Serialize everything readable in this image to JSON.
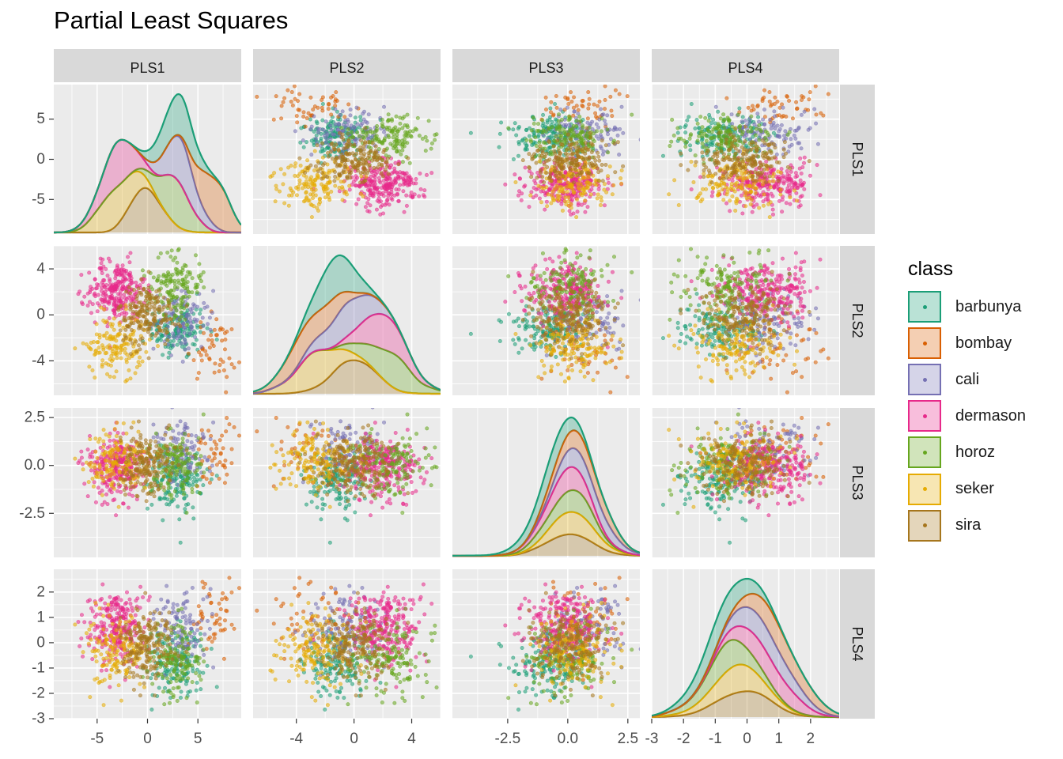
{
  "chart_data": {
    "type": "scatter",
    "title": "Partial Least Squares",
    "variables": [
      "PLS1",
      "PLS2",
      "PLS3",
      "PLS4"
    ],
    "diagonal": "density",
    "legend": {
      "title": "class",
      "position": "right"
    },
    "series": [
      {
        "name": "barbunya",
        "color": "#1B9E77",
        "center": {
          "PLS1": 3.0,
          "PLS2": -1.2,
          "PLS3": -0.8,
          "PLS4": -0.9
        }
      },
      {
        "name": "bombay",
        "color": "#D95F02",
        "center": {
          "PLS1": 6.5,
          "PLS2": -3.0,
          "PLS3": 0.6,
          "PLS4": 1.1
        }
      },
      {
        "name": "cali",
        "color": "#7570B3",
        "center": {
          "PLS1": 3.5,
          "PLS2": -0.5,
          "PLS3": 0.8,
          "PLS4": 0.6
        }
      },
      {
        "name": "dermason",
        "color": "#E7298A",
        "center": {
          "PLS1": -3.0,
          "PLS2": 2.2,
          "PLS3": -0.1,
          "PLS4": 0.5
        }
      },
      {
        "name": "horoz",
        "color": "#66A61E",
        "center": {
          "PLS1": 2.8,
          "PLS2": 2.6,
          "PLS3": 0.1,
          "PLS4": -0.6
        }
      },
      {
        "name": "seker",
        "color": "#E6AB02",
        "center": {
          "PLS1": -3.0,
          "PLS2": -2.6,
          "PLS3": 0.2,
          "PLS4": -0.3
        }
      },
      {
        "name": "sira",
        "color": "#A6761D",
        "center": {
          "PLS1": 0.0,
          "PLS2": 0.0,
          "PLS3": 0.0,
          "PLS4": -0.1
        }
      }
    ],
    "ranges": {
      "PLS1": [
        -9.3,
        9.3
      ],
      "PLS2": [
        -7.0,
        6.0
      ],
      "PLS3": [
        -4.8,
        3.0
      ],
      "PLS4": [
        -3.0,
        2.9
      ]
    },
    "ticks": {
      "PLS1": [
        -5,
        0,
        5
      ],
      "PLS2": [
        -4,
        0,
        4
      ],
      "PLS3": [
        -2.5,
        0.0,
        2.5
      ],
      "PLS4": [
        -3,
        -2,
        -1,
        0,
        1,
        2
      ]
    },
    "tick_labels": {
      "PLS1": [
        "-5",
        "0",
        "5"
      ],
      "PLS2": [
        "-4",
        "0",
        "4"
      ],
      "PLS3": [
        "-2.5",
        "0.0",
        "2.5"
      ],
      "PLS4": [
        "-3",
        "-2",
        "-1",
        "0",
        "1",
        "2"
      ]
    },
    "row_axis_ticks": [
      {
        "values": [
          -5,
          0,
          5
        ],
        "labels": [
          "-5",
          "0",
          "5"
        ]
      },
      {
        "values": [
          -4,
          0,
          4
        ],
        "labels": [
          "-4",
          "0",
          "4"
        ]
      },
      {
        "values": [
          -2.5,
          0.0,
          2.5
        ],
        "labels": [
          "-2.5",
          "0.0",
          "2.5"
        ]
      },
      {
        "values": [
          -3,
          -2,
          -1,
          0,
          1,
          2
        ],
        "labels": [
          "-3",
          "-2",
          "-1",
          "0",
          "1",
          "2"
        ]
      }
    ],
    "grid": true
  }
}
